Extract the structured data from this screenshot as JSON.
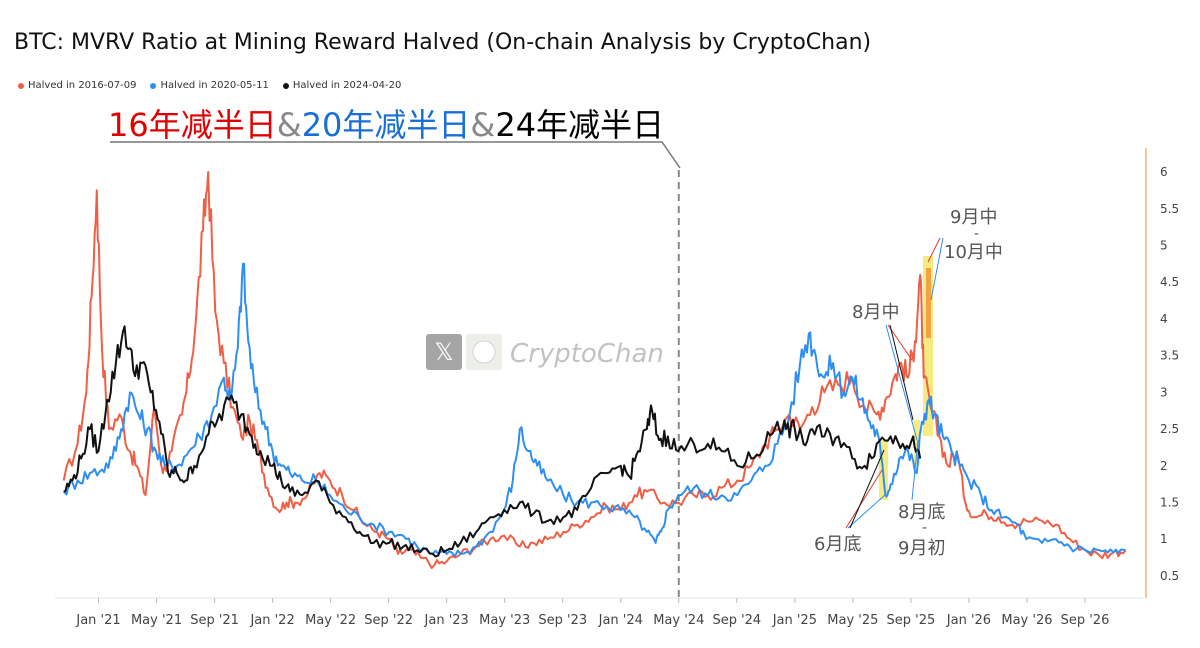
{
  "title": "BTC: MVRV Ratio at Mining Reward Halved (On-chain Analysis by CryptoChan)",
  "banner": {
    "part1": "16年减半日",
    "amp1": "&",
    "part2": "20年减半日",
    "amp2": "&",
    "part3": "24年减半日"
  },
  "watermark": "CryptoChan",
  "colors": {
    "series_2016": "#ef5f46",
    "series_2020": "#2f8ef2",
    "series_2024": "#111111",
    "banner_2016": "#e00000",
    "banner_2020": "#1a6fd6",
    "banner_2024": "#000000",
    "amp": "#888888",
    "highlight": "#f5e76a",
    "highlight_orange": "#f39a3c",
    "axis_right": "#f2b27a"
  },
  "annotations": {
    "a1": "9月中",
    "a1_dash": "-",
    "a2": "10月中",
    "a3": "8月中",
    "a4": "8月底",
    "a4_dash": "-",
    "a5": "9月初",
    "a6": "6月底"
  },
  "chart_data": {
    "type": "line",
    "x_tick_labels": [
      "Jan '21",
      "May '21",
      "Sep '21",
      "Jan '22",
      "May '22",
      "Sep '22",
      "Jan '23",
      "May '23",
      "Sep '23",
      "Jan '24",
      "May '24",
      "Sep '24",
      "Jan '25",
      "May '25",
      "Sep '25",
      "Jan '26",
      "May '26",
      "Sep '26"
    ],
    "y_ticks": [
      0.5,
      1,
      1.5,
      2,
      2.5,
      3,
      3.5,
      4,
      4.5,
      5,
      5.5,
      6
    ],
    "ylim": [
      0.2,
      6.3
    ],
    "y_axis_position": "right",
    "legend_position": "top-left",
    "marker_date": "May '24",
    "series": [
      {
        "name": "Halved in 2016-07-09",
        "color_key": "series_2016",
        "points": [
          [
            2020.8,
            1.8
          ],
          [
            2020.88,
            2.3
          ],
          [
            2020.93,
            3.0
          ],
          [
            2020.96,
            4.3
          ],
          [
            2020.99,
            5.75
          ],
          [
            2021.02,
            3.6
          ],
          [
            2021.06,
            2.5
          ],
          [
            2021.12,
            2.7
          ],
          [
            2021.18,
            2.2
          ],
          [
            2021.22,
            2.0
          ],
          [
            2021.27,
            1.6
          ],
          [
            2021.32,
            2.8
          ],
          [
            2021.37,
            1.9
          ],
          [
            2021.42,
            2.2
          ],
          [
            2021.48,
            2.7
          ],
          [
            2021.52,
            3.2
          ],
          [
            2021.56,
            4.0
          ],
          [
            2021.6,
            5.2
          ],
          [
            2021.63,
            6.0
          ],
          [
            2021.67,
            4.1
          ],
          [
            2021.72,
            3.4
          ],
          [
            2021.77,
            2.8
          ],
          [
            2021.82,
            2.4
          ],
          [
            2021.87,
            2.6
          ],
          [
            2021.92,
            2.2
          ],
          [
            2021.97,
            1.7
          ],
          [
            2022.03,
            1.4
          ],
          [
            2022.08,
            1.5
          ],
          [
            2022.13,
            1.5
          ],
          [
            2022.2,
            1.6
          ],
          [
            2022.27,
            1.9
          ],
          [
            2022.33,
            1.8
          ],
          [
            2022.4,
            1.6
          ],
          [
            2022.47,
            1.4
          ],
          [
            2022.53,
            1.2
          ],
          [
            2022.6,
            1.1
          ],
          [
            2022.67,
            1.0
          ],
          [
            2022.72,
            0.8
          ],
          [
            2022.78,
            0.85
          ],
          [
            2022.85,
            0.75
          ],
          [
            2022.93,
            0.65
          ],
          [
            2023.0,
            0.7
          ],
          [
            2023.08,
            0.8
          ],
          [
            2023.17,
            0.9
          ],
          [
            2023.25,
            1.0
          ],
          [
            2023.33,
            1.05
          ],
          [
            2023.42,
            0.9
          ],
          [
            2023.5,
            0.95
          ],
          [
            2023.58,
            1.0
          ],
          [
            2023.67,
            1.1
          ],
          [
            2023.75,
            1.2
          ],
          [
            2023.83,
            1.3
          ],
          [
            2023.92,
            1.45
          ],
          [
            2024.0,
            1.4
          ],
          [
            2024.08,
            1.6
          ],
          [
            2024.15,
            1.65
          ],
          [
            2024.25,
            1.5
          ],
          [
            2024.33,
            1.5
          ],
          [
            2024.42,
            1.6
          ],
          [
            2024.5,
            1.6
          ],
          [
            2024.58,
            1.7
          ],
          [
            2024.67,
            1.8
          ],
          [
            2024.75,
            2.0
          ],
          [
            2024.83,
            2.3
          ],
          [
            2024.9,
            2.5
          ],
          [
            2024.97,
            2.7
          ],
          [
            2025.03,
            2.5
          ],
          [
            2025.1,
            2.8
          ],
          [
            2025.17,
            3.0
          ],
          [
            2025.25,
            3.1
          ],
          [
            2025.33,
            3.2
          ],
          [
            2025.4,
            2.8
          ],
          [
            2025.47,
            2.7
          ],
          [
            2025.52,
            2.9
          ],
          [
            2025.57,
            3.2
          ],
          [
            2025.61,
            3.4
          ],
          [
            2025.65,
            3.2
          ],
          [
            2025.69,
            3.7
          ],
          [
            2025.72,
            4.6
          ],
          [
            2025.74,
            3.2
          ],
          [
            2025.78,
            2.8
          ],
          [
            2025.83,
            2.4
          ],
          [
            2025.88,
            2.0
          ],
          [
            2025.93,
            2.2
          ],
          [
            2025.98,
            1.5
          ],
          [
            2026.03,
            1.3
          ],
          [
            2026.1,
            1.35
          ],
          [
            2026.17,
            1.3
          ],
          [
            2026.25,
            1.2
          ],
          [
            2026.33,
            1.25
          ],
          [
            2026.42,
            1.25
          ],
          [
            2026.5,
            1.2
          ],
          [
            2026.58,
            1.0
          ],
          [
            2026.67,
            0.85
          ],
          [
            2026.75,
            0.78
          ],
          [
            2026.83,
            0.82
          ],
          [
            2026.9,
            0.85
          ]
        ]
      },
      {
        "name": "Halved in 2020-05-11",
        "color_key": "series_2020",
        "points": [
          [
            2020.8,
            1.65
          ],
          [
            2020.88,
            1.8
          ],
          [
            2020.95,
            1.9
          ],
          [
            2021.02,
            1.95
          ],
          [
            2021.08,
            2.1
          ],
          [
            2021.13,
            2.5
          ],
          [
            2021.18,
            3.0
          ],
          [
            2021.23,
            2.7
          ],
          [
            2021.28,
            2.5
          ],
          [
            2021.33,
            2.2
          ],
          [
            2021.38,
            2.0
          ],
          [
            2021.45,
            2.0
          ],
          [
            2021.52,
            2.2
          ],
          [
            2021.58,
            2.4
          ],
          [
            2021.65,
            2.7
          ],
          [
            2021.72,
            3.2
          ],
          [
            2021.76,
            2.9
          ],
          [
            2021.8,
            3.6
          ],
          [
            2021.83,
            4.75
          ],
          [
            2021.86,
            3.7
          ],
          [
            2021.9,
            3.0
          ],
          [
            2021.95,
            2.6
          ],
          [
            2022.0,
            2.2
          ],
          [
            2022.05,
            2.0
          ],
          [
            2022.1,
            1.9
          ],
          [
            2022.17,
            1.8
          ],
          [
            2022.25,
            1.8
          ],
          [
            2022.33,
            1.6
          ],
          [
            2022.42,
            1.4
          ],
          [
            2022.5,
            1.3
          ],
          [
            2022.58,
            1.2
          ],
          [
            2022.67,
            1.1
          ],
          [
            2022.75,
            1.05
          ],
          [
            2022.83,
            0.9
          ],
          [
            2022.92,
            0.8
          ],
          [
            2023.0,
            0.8
          ],
          [
            2023.08,
            0.8
          ],
          [
            2023.17,
            0.9
          ],
          [
            2023.25,
            1.1
          ],
          [
            2023.33,
            1.4
          ],
          [
            2023.38,
            1.8
          ],
          [
            2023.42,
            2.5
          ],
          [
            2023.47,
            2.2
          ],
          [
            2023.52,
            2.0
          ],
          [
            2023.58,
            1.8
          ],
          [
            2023.67,
            1.6
          ],
          [
            2023.75,
            1.5
          ],
          [
            2023.83,
            1.5
          ],
          [
            2023.92,
            1.45
          ],
          [
            2024.0,
            1.4
          ],
          [
            2024.08,
            1.3
          ],
          [
            2024.15,
            1.1
          ],
          [
            2024.2,
            0.95
          ],
          [
            2024.23,
            1.1
          ],
          [
            2024.27,
            1.4
          ],
          [
            2024.33,
            1.6
          ],
          [
            2024.42,
            1.7
          ],
          [
            2024.5,
            1.6
          ],
          [
            2024.58,
            1.6
          ],
          [
            2024.67,
            1.6
          ],
          [
            2024.75,
            1.8
          ],
          [
            2024.83,
            2.0
          ],
          [
            2024.9,
            2.3
          ],
          [
            2024.97,
            2.7
          ],
          [
            2025.03,
            3.4
          ],
          [
            2025.08,
            3.8
          ],
          [
            2025.12,
            3.5
          ],
          [
            2025.17,
            3.2
          ],
          [
            2025.22,
            3.4
          ],
          [
            2025.28,
            3.0
          ],
          [
            2025.33,
            3.2
          ],
          [
            2025.38,
            2.9
          ],
          [
            2025.43,
            2.6
          ],
          [
            2025.48,
            2.4
          ],
          [
            2025.52,
            1.6
          ],
          [
            2025.55,
            1.75
          ],
          [
            2025.6,
            2.1
          ],
          [
            2025.65,
            2.2
          ],
          [
            2025.7,
            1.9
          ],
          [
            2025.73,
            2.6
          ],
          [
            2025.77,
            2.9
          ],
          [
            2025.8,
            2.7
          ],
          [
            2025.85,
            2.4
          ],
          [
            2025.9,
            2.2
          ],
          [
            2025.95,
            2.0
          ],
          [
            2026.0,
            1.8
          ],
          [
            2026.07,
            1.6
          ],
          [
            2026.13,
            1.4
          ],
          [
            2026.2,
            1.3
          ],
          [
            2026.28,
            1.2
          ],
          [
            2026.33,
            1.0
          ],
          [
            2026.42,
            0.95
          ],
          [
            2026.5,
            1.0
          ],
          [
            2026.58,
            0.9
          ],
          [
            2026.67,
            0.85
          ],
          [
            2026.75,
            0.85
          ],
          [
            2026.83,
            0.82
          ],
          [
            2026.9,
            0.85
          ]
        ]
      },
      {
        "name": "Halved in 2024-04-20",
        "color_key": "series_2024",
        "points": [
          [
            2020.8,
            1.65
          ],
          [
            2020.85,
            1.8
          ],
          [
            2020.9,
            2.1
          ],
          [
            2020.95,
            2.5
          ],
          [
            2021.0,
            2.2
          ],
          [
            2021.05,
            2.9
          ],
          [
            2021.1,
            3.4
          ],
          [
            2021.15,
            3.9
          ],
          [
            2021.2,
            3.3
          ],
          [
            2021.25,
            3.4
          ],
          [
            2021.3,
            3.0
          ],
          [
            2021.35,
            2.6
          ],
          [
            2021.4,
            1.9
          ],
          [
            2021.45,
            1.9
          ],
          [
            2021.5,
            1.8
          ],
          [
            2021.55,
            2.0
          ],
          [
            2021.62,
            2.4
          ],
          [
            2021.68,
            2.6
          ],
          [
            2021.75,
            2.9
          ],
          [
            2021.82,
            2.7
          ],
          [
            2021.88,
            2.4
          ],
          [
            2021.93,
            2.2
          ],
          [
            2022.0,
            2.0
          ],
          [
            2022.05,
            1.8
          ],
          [
            2022.1,
            1.65
          ],
          [
            2022.17,
            1.6
          ],
          [
            2022.25,
            1.8
          ],
          [
            2022.33,
            1.5
          ],
          [
            2022.42,
            1.3
          ],
          [
            2022.5,
            1.1
          ],
          [
            2022.58,
            0.95
          ],
          [
            2022.67,
            0.95
          ],
          [
            2022.75,
            0.9
          ],
          [
            2022.83,
            0.85
          ],
          [
            2022.92,
            0.8
          ],
          [
            2023.0,
            0.85
          ],
          [
            2023.08,
            0.95
          ],
          [
            2023.17,
            1.1
          ],
          [
            2023.25,
            1.3
          ],
          [
            2023.33,
            1.4
          ],
          [
            2023.42,
            1.5
          ],
          [
            2023.5,
            1.35
          ],
          [
            2023.58,
            1.25
          ],
          [
            2023.67,
            1.3
          ],
          [
            2023.75,
            1.4
          ],
          [
            2023.83,
            1.7
          ],
          [
            2023.92,
            1.9
          ],
          [
            2024.0,
            2.0
          ],
          [
            2024.05,
            1.85
          ],
          [
            2024.1,
            2.2
          ],
          [
            2024.15,
            2.5
          ],
          [
            2024.18,
            2.75
          ],
          [
            2024.22,
            2.35
          ],
          [
            2024.27,
            2.4
          ],
          [
            2024.33,
            2.2
          ],
          [
            2024.42,
            2.3
          ],
          [
            2024.5,
            2.3
          ],
          [
            2024.58,
            2.2
          ],
          [
            2024.67,
            2.0
          ],
          [
            2024.75,
            2.1
          ],
          [
            2024.83,
            2.3
          ],
          [
            2024.9,
            2.6
          ],
          [
            2024.95,
            2.5
          ],
          [
            2025.0,
            2.5
          ],
          [
            2025.05,
            2.3
          ],
          [
            2025.1,
            2.5
          ],
          [
            2025.17,
            2.4
          ],
          [
            2025.25,
            2.4
          ],
          [
            2025.33,
            2.1
          ],
          [
            2025.4,
            2.0
          ],
          [
            2025.47,
            2.3
          ],
          [
            2025.55,
            2.4
          ],
          [
            2025.62,
            2.3
          ],
          [
            2025.68,
            2.4
          ],
          [
            2025.72,
            2.1
          ]
        ]
      }
    ]
  }
}
